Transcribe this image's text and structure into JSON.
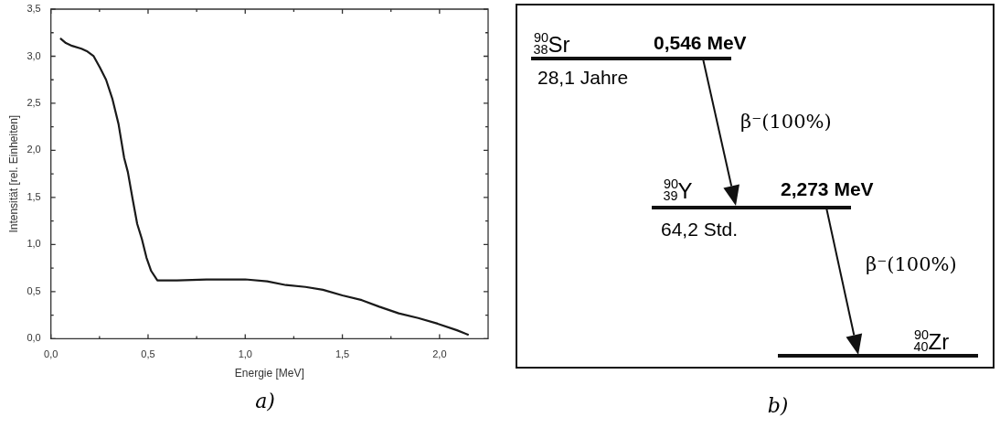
{
  "chart_data": [
    {
      "type": "line",
      "xlabel": "Energie [MeV]",
      "ylabel": "Intensität [rel. Einheiten]",
      "color": "#1a1a1a",
      "marker": "none",
      "line_style": "solid",
      "grid": false,
      "legend": false,
      "x": [
        0.048,
        0.077,
        0.109,
        0.157,
        0.188,
        0.22,
        0.252,
        0.284,
        0.316,
        0.348,
        0.377,
        0.396,
        0.42,
        0.444,
        0.468,
        0.492,
        0.516,
        0.548,
        0.65,
        0.8,
        0.97,
        1.0,
        1.113,
        1.21,
        1.31,
        1.4,
        1.5,
        1.6,
        1.69,
        1.79,
        1.89,
        1.99,
        2.09,
        2.15
      ],
      "values": [
        3.19,
        3.14,
        3.11,
        3.08,
        3.05,
        3.0,
        2.88,
        2.75,
        2.55,
        2.28,
        1.92,
        1.77,
        1.49,
        1.22,
        1.06,
        0.86,
        0.72,
        0.62,
        0.62,
        0.63,
        0.63,
        0.63,
        0.61,
        0.57,
        0.55,
        0.52,
        0.46,
        0.41,
        0.34,
        0.27,
        0.22,
        0.16,
        0.09,
        0.04
      ],
      "xlim": [
        0,
        2.25
      ],
      "xticks": [
        {
          "value": 0,
          "label": "0,0"
        },
        {
          "value": 0.25,
          "label": null
        },
        {
          "value": 0.5,
          "label": "0,5"
        },
        {
          "value": 0.75,
          "label": null
        },
        {
          "value": 1,
          "label": "1,0"
        },
        {
          "value": 1.25,
          "label": null
        },
        {
          "value": 1.5,
          "label": "1,5"
        },
        {
          "value": 1.75,
          "label": null
        },
        {
          "value": 2,
          "label": "2,0"
        }
      ],
      "ylim": [
        0,
        3.5
      ],
      "yticks": [
        {
          "value": 0,
          "label": "0,0"
        },
        {
          "value": 0.25,
          "label": null
        },
        {
          "value": 0.5,
          "label": "0,5"
        },
        {
          "value": 0.75,
          "label": null
        },
        {
          "value": 1,
          "label": "1,0"
        },
        {
          "value": 1.25,
          "label": null
        },
        {
          "value": 1.5,
          "label": "1,5"
        },
        {
          "value": 1.75,
          "label": null
        },
        {
          "value": 2,
          "label": "2,0"
        },
        {
          "value": 2.25,
          "label": null
        },
        {
          "value": 2.5,
          "label": "2,5"
        },
        {
          "value": 2.75,
          "label": null
        },
        {
          "value": 3,
          "label": "3,0"
        },
        {
          "value": 3.25,
          "label": null
        },
        {
          "value": 3.5,
          "label": "3,5"
        }
      ],
      "annotations": [
        "a)"
      ]
    },
    {
      "type": "other",
      "annotations": [
        "$^{90}$$_{38}$Sr",
        "0,546 MeV",
        "28,1 Jahre",
        "β⁻(100%)",
        "$^{90}$$_{39}$Y",
        "2,273 MeV",
        "64,2 Std.",
        "β⁻(100%)",
        "$^{90}$$_{40}$Zr",
        "b)"
      ]
    }
  ]
}
